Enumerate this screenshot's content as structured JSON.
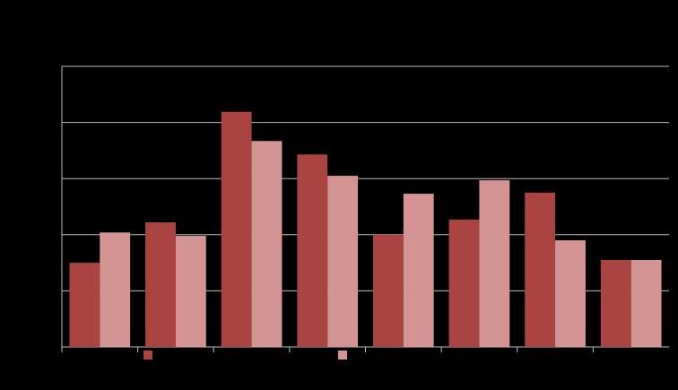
{
  "chart_data": {
    "type": "bar",
    "categories": [
      null,
      null,
      null,
      null,
      null,
      null,
      null,
      null
    ],
    "series": [
      {
        "color": "#a94442",
        "values": [
          1.5,
          2.22,
          4.19,
          3.43,
          2.0,
          2.27,
          2.75,
          1.55
        ]
      },
      {
        "color": "#d49494",
        "values": [
          2.04,
          1.98,
          3.67,
          3.05,
          2.73,
          2.97,
          1.9,
          1.55
        ]
      }
    ],
    "ylim": [
      0,
      5
    ],
    "yticks": [
      0,
      1,
      2,
      3,
      4,
      5
    ],
    "grid": true
  }
}
